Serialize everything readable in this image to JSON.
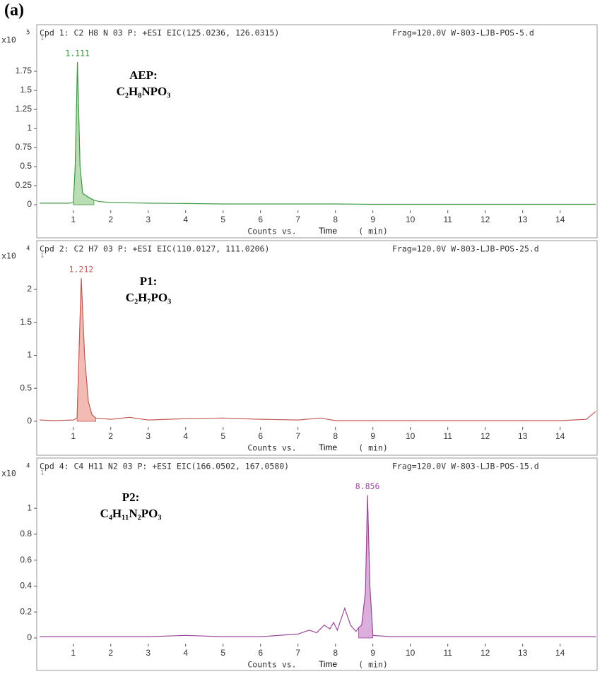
{
  "panel_label": "(a)",
  "chart_data": [
    {
      "type": "line",
      "header": "Cpd 1: C2 H8 N 03 P: +ESI EIC(125.0236, 126.0315)",
      "frag": "Frag=120.0V W-803-LJB-POS-5.d",
      "y_multiplier": "x10",
      "y_exponent": "5",
      "cursor_label": "1",
      "peak_x": 1.111,
      "annotation": "AEP:",
      "formula": "C₂H₈NPO₃",
      "x_label_parts": [
        "Counts vs.",
        "Time",
        "(  min)"
      ],
      "color": "#3f9a44",
      "fill_color": "#b9ddb4",
      "peak_area_x": [
        1.0,
        1.55
      ],
      "x": [
        0.1,
        0.5,
        0.9,
        1.0,
        1.05,
        1.111,
        1.18,
        1.25,
        1.4,
        1.55,
        1.7,
        2,
        3,
        4,
        5,
        6,
        7,
        8,
        9,
        10,
        11,
        12,
        13,
        14,
        14.95
      ],
      "values": [
        0.02,
        0.02,
        0.02,
        0.03,
        0.5,
        1.87,
        0.5,
        0.15,
        0.1,
        0.06,
        0.04,
        0.03,
        0.02,
        0.015,
        0.01,
        0.01,
        0.01,
        0.01,
        0.005,
        0.005,
        0.005,
        0.005,
        0.005,
        0.005,
        0.005
      ],
      "xlim": [
        0.08,
        14.95
      ],
      "ylim": [
        -0.055,
        2.13
      ],
      "xticks": [
        1,
        2,
        3,
        4,
        5,
        6,
        7,
        8,
        9,
        10,
        11,
        12,
        13,
        14
      ],
      "yticks": [
        0,
        0.25,
        0.5,
        0.75,
        1,
        1.25,
        1.5,
        1.75
      ]
    },
    {
      "type": "line",
      "header": "Cpd 2: C2 H7 03 P: +ESI EIC(110.0127, 111.0206)",
      "frag": "Frag=120.0V W-803-LJB-POS-25.d",
      "y_multiplier": "x10",
      "y_exponent": "4",
      "cursor_label": "1",
      "peak_x": 1.212,
      "annotation": "P1:",
      "formula": "C₂H₇PO₃",
      "x_label_parts": [
        "Counts vs.",
        "Time",
        "(  min)"
      ],
      "color": "#c25a55",
      "fill_color": "#f2bcb5",
      "peak_area_x": [
        1.1,
        1.6
      ],
      "x": [
        0.1,
        0.5,
        1,
        1.1,
        1.15,
        1.212,
        1.3,
        1.4,
        1.5,
        1.6,
        2,
        2.5,
        3,
        4,
        5,
        6,
        7,
        7.6,
        8,
        9,
        10,
        11,
        12,
        13,
        14,
        14.7,
        14.95
      ],
      "values": [
        0.02,
        0.01,
        0.02,
        0.05,
        1.0,
        2.17,
        1.0,
        0.3,
        0.1,
        0.05,
        0.03,
        0.06,
        0.02,
        0.04,
        0.05,
        0.03,
        0.02,
        0.05,
        0.01,
        0.01,
        0.01,
        0.01,
        0.01,
        0.01,
        0.01,
        0.03,
        0.15
      ],
      "xlim": [
        0.08,
        14.95
      ],
      "ylim": [
        -0.065,
        2.45
      ],
      "xticks": [
        1,
        2,
        3,
        4,
        5,
        6,
        7,
        8,
        9,
        10,
        11,
        12,
        13,
        14
      ],
      "yticks": [
        0,
        0.5,
        1,
        1.5,
        2
      ]
    },
    {
      "type": "line",
      "header": "Cpd 4: C4 H11 N2 03 P: +ESI EIC(166.0502, 167.0580)",
      "frag": "Frag=120.0V W-803-LJB-POS-15.d",
      "y_multiplier": "x10",
      "y_exponent": "4",
      "cursor_label": "1",
      "peak_x": 8.856,
      "annotation": "P2:",
      "formula": "C₄H₁₁N₂PO₃",
      "x_label_parts": [
        "Counts vs.",
        "Time",
        "(  min)"
      ],
      "color": "#9b4a9b",
      "fill_color": "#dbaedb",
      "peak_area_x": [
        8.62,
        9.0
      ],
      "x": [
        0.1,
        1,
        2,
        3,
        4,
        5,
        6,
        7,
        7.3,
        7.5,
        7.7,
        7.85,
        7.95,
        8.05,
        8.25,
        8.4,
        8.55,
        8.62,
        8.7,
        8.8,
        8.856,
        8.92,
        9.0,
        9.5,
        10,
        11,
        12,
        13,
        14,
        14.95
      ],
      "values": [
        0.01,
        0.01,
        0.01,
        0.01,
        0.02,
        0.01,
        0.01,
        0.03,
        0.06,
        0.04,
        0.1,
        0.07,
        0.12,
        0.06,
        0.23,
        0.1,
        0.05,
        0.08,
        0.1,
        0.35,
        1.1,
        0.4,
        0.02,
        0.01,
        0.01,
        0.01,
        0.01,
        0.01,
        0.01,
        0.01
      ],
      "xlim": [
        0.08,
        14.95
      ],
      "ylim": [
        -0.033,
        1.24
      ],
      "xticks": [
        1,
        2,
        3,
        4,
        5,
        6,
        7,
        8,
        9,
        10,
        11,
        12,
        13,
        14
      ],
      "yticks": [
        0,
        0.2,
        0.4,
        0.6,
        0.8,
        1
      ]
    }
  ]
}
